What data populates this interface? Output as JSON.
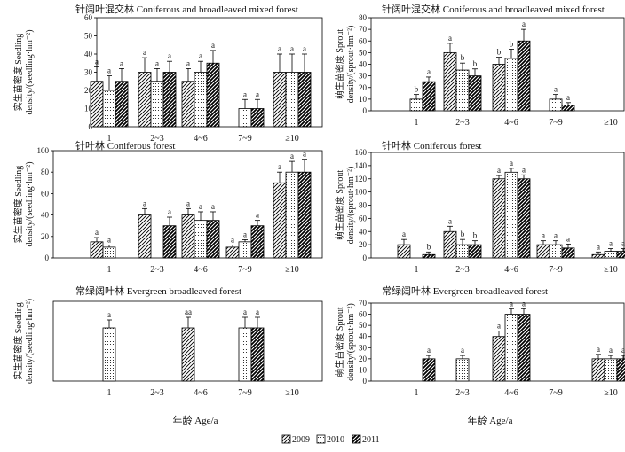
{
  "figure": {
    "series_names": [
      "2009",
      "2010",
      "2011"
    ],
    "legend_labels": [
      "2009",
      "2010",
      "2011"
    ],
    "x_axis_label": "年龄 Age/a",
    "ylabel_seedling_cn": "实生苗密度 Seedling",
    "ylabel_seedling_en": "density/(seedling·hm⁻²)",
    "ylabel_sprout_cn": "萌生苗密度 Sprout",
    "ylabel_sprout_en": "density/(sprout·hm⁻²)"
  },
  "chart_data": [
    {
      "type": "bar",
      "title": "针阔叶混交林 Coniferous and broadleaved mixed forest",
      "ylabel": "实生苗密度 Seedling density/(seedling·hm⁻²)",
      "ylim": [
        0,
        60
      ],
      "yticks": [
        0,
        10,
        20,
        30,
        40,
        50,
        60
      ],
      "categories": [
        "1",
        "2~3",
        "4~6",
        "7~9",
        "≥10"
      ],
      "series": [
        {
          "name": "2009",
          "values": [
            25,
            30,
            25,
            null,
            30
          ],
          "errors": [
            8,
            8,
            7,
            null,
            10
          ],
          "labels": [
            "a",
            "a",
            "a",
            null,
            "a"
          ]
        },
        {
          "name": "2010",
          "values": [
            20,
            25,
            30,
            10,
            30
          ],
          "errors": [
            8,
            7,
            6,
            5,
            10
          ],
          "labels": [
            "a",
            "a",
            "a",
            "a",
            "a"
          ]
        },
        {
          "name": "2011",
          "values": [
            25,
            30,
            35,
            10,
            30
          ],
          "errors": [
            7,
            6,
            7,
            5,
            10
          ],
          "labels": [
            "a",
            "a",
            "a",
            "a",
            "a"
          ]
        }
      ]
    },
    {
      "type": "bar",
      "title": "针阔叶混交林 Coniferous and broadleaved mixed forest",
      "ylabel": "萌生苗密度 Sprout density/(sprout·hm⁻²)",
      "ylim": [
        0,
        80
      ],
      "yticks": [
        0,
        10,
        20,
        30,
        40,
        50,
        60,
        70,
        80
      ],
      "categories": [
        "1",
        "2~3",
        "4~6",
        "7~9",
        "≥10"
      ],
      "series": [
        {
          "name": "2009",
          "values": [
            null,
            50,
            40,
            null,
            null
          ],
          "errors": [
            null,
            8,
            6,
            null,
            null
          ],
          "labels": [
            null,
            "a",
            "b",
            null,
            null
          ]
        },
        {
          "name": "2010",
          "values": [
            10,
            35,
            45,
            10,
            null
          ],
          "errors": [
            4,
            6,
            8,
            4,
            null
          ],
          "labels": [
            "b",
            "b",
            "b",
            "a",
            null
          ]
        },
        {
          "name": "2011",
          "values": [
            25,
            30,
            60,
            5,
            null
          ],
          "errors": [
            4,
            6,
            10,
            2,
            null
          ],
          "labels": [
            "a",
            "b",
            "a",
            "a",
            null
          ]
        }
      ]
    },
    {
      "type": "bar",
      "title": "针叶林 Coniferous forest",
      "ylabel": "实生苗密度 Seedling density/(seedling·hm⁻²)",
      "ylim": [
        0,
        100
      ],
      "yticks": [
        0,
        20,
        40,
        60,
        80,
        100
      ],
      "categories": [
        "1",
        "2~3",
        "4~6",
        "7~9",
        "≥10"
      ],
      "series": [
        {
          "name": "2009",
          "values": [
            15,
            40,
            40,
            10,
            70
          ],
          "errors": [
            4,
            6,
            6,
            2,
            10
          ],
          "labels": [
            "a",
            "a",
            "a",
            "a",
            "a"
          ]
        },
        {
          "name": "2010",
          "values": [
            10,
            null,
            35,
            15,
            80
          ],
          "errors": [
            2,
            null,
            8,
            2,
            10
          ],
          "labels": [
            "a",
            null,
            "a",
            "a",
            "a"
          ]
        },
        {
          "name": "2011",
          "values": [
            null,
            30,
            35,
            30,
            80
          ],
          "errors": [
            null,
            8,
            8,
            5,
            12
          ],
          "labels": [
            null,
            "a",
            "a",
            "a",
            "a"
          ]
        }
      ]
    },
    {
      "type": "bar",
      "title": "针叶林 Coniferous forest",
      "ylabel": "萌生苗密度 Sprout density/(sprout·hm⁻²)",
      "ylim": [
        0,
        160
      ],
      "yticks": [
        0,
        20,
        40,
        60,
        80,
        100,
        120,
        140,
        160
      ],
      "categories": [
        "1",
        "2~3",
        "4~6",
        "7~9",
        "≥10"
      ],
      "series": [
        {
          "name": "2009",
          "values": [
            20,
            40,
            120,
            20,
            5
          ],
          "errors": [
            8,
            8,
            5,
            6,
            4
          ],
          "labels": [
            "a",
            "a",
            "a",
            "a",
            "a"
          ]
        },
        {
          "name": "2010",
          "values": [
            null,
            20,
            130,
            20,
            10
          ],
          "errors": [
            null,
            8,
            6,
            6,
            4
          ],
          "labels": [
            null,
            "b",
            "a",
            "a",
            "a"
          ]
        },
        {
          "name": "2011",
          "values": [
            5,
            20,
            120,
            15,
            10
          ],
          "errors": [
            4,
            6,
            6,
            6,
            4
          ],
          "labels": [
            "b",
            "b",
            "a",
            "a",
            "a"
          ]
        }
      ]
    },
    {
      "type": "bar",
      "title": "常绿阔叶林 Evergreen broadleaved forest",
      "ylabel": "实生苗密度 Seedling density/(seedling·hm⁻²)",
      "ylim": [
        0,
        30
      ],
      "yticks": [],
      "categories": [
        "1",
        "2~3",
        "4~6",
        "7~9",
        "≥10"
      ],
      "series": [
        {
          "name": "2009",
          "values": [
            null,
            null,
            20,
            null,
            null
          ],
          "errors": [
            null,
            null,
            4,
            null,
            null
          ],
          "labels": [
            null,
            null,
            "aa",
            null,
            null
          ]
        },
        {
          "name": "2010",
          "values": [
            20,
            null,
            null,
            20,
            null
          ],
          "errors": [
            3,
            null,
            null,
            4,
            null
          ],
          "labels": [
            "a",
            null,
            null,
            "a",
            null
          ]
        },
        {
          "name": "2011",
          "values": [
            null,
            null,
            null,
            20,
            null
          ],
          "errors": [
            null,
            null,
            null,
            4,
            null
          ],
          "labels": [
            null,
            null,
            null,
            "a",
            null
          ]
        }
      ]
    },
    {
      "type": "bar",
      "title": "常绿阔叶林 Evergreen broadleaved forest",
      "ylabel": "萌生苗密度 Sprout density/(sprout·hm⁻²)",
      "ylim": [
        0,
        70
      ],
      "yticks": [
        0,
        10,
        20,
        30,
        40,
        50,
        60,
        70
      ],
      "categories": [
        "1",
        "2~3",
        "4~6",
        "7~9",
        "≥10"
      ],
      "series": [
        {
          "name": "2009",
          "values": [
            null,
            null,
            40,
            null,
            20
          ],
          "errors": [
            null,
            null,
            5,
            null,
            4
          ],
          "labels": [
            null,
            null,
            "a",
            null,
            "a"
          ]
        },
        {
          "name": "2010",
          "values": [
            null,
            20,
            60,
            null,
            20
          ],
          "errors": [
            null,
            3,
            5,
            null,
            3
          ],
          "labels": [
            null,
            "a",
            "a",
            null,
            "a"
          ]
        },
        {
          "name": "2011",
          "values": [
            20,
            null,
            60,
            null,
            20
          ],
          "errors": [
            3,
            null,
            5,
            null,
            3
          ],
          "labels": [
            "a",
            null,
            "a",
            null,
            "a"
          ]
        }
      ]
    }
  ]
}
